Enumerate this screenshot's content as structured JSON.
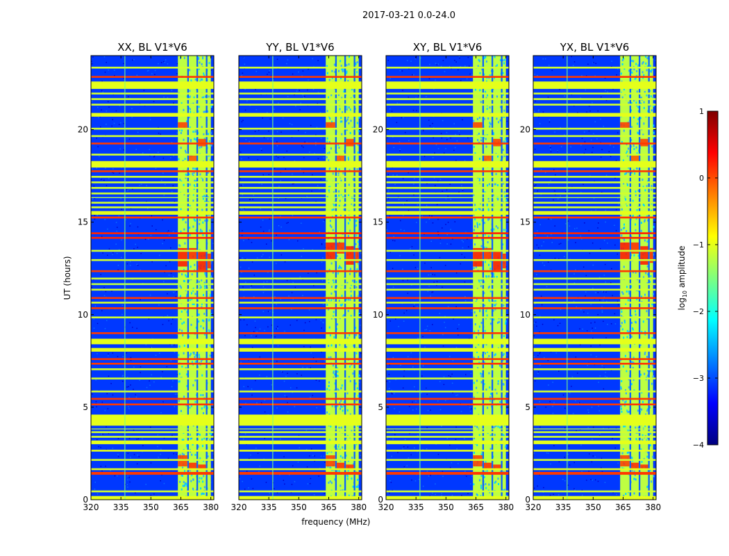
{
  "chart_data": {
    "type": "heatmap",
    "suptitle": "2017-03-21 0.0-24.0",
    "xlabel": "frequency (MHz)",
    "ylabel": "UT (hours)",
    "xlim": [
      320,
      381.5
    ],
    "ylim": [
      0,
      24
    ],
    "xticks": [
      320,
      335,
      350,
      365,
      380
    ],
    "xtick_labels": [
      "320",
      "335",
      "350",
      "365",
      "380"
    ],
    "yticks": [
      0,
      5,
      10,
      15,
      20
    ],
    "ytick_labels": [
      "0",
      "5",
      "10",
      "15",
      "20"
    ],
    "colorbar": {
      "label": "log10 amplitude",
      "label_base": "log",
      "label_sub": "10",
      "label_rest": " amplitude",
      "range": [
        -4,
        1
      ],
      "ticks": [
        1,
        0,
        -1,
        -2,
        -3,
        -4
      ],
      "tick_labels": [
        "1",
        "0",
        "−1",
        "−2",
        "−3",
        "−4"
      ],
      "colormap": "jet"
    },
    "panels": [
      {
        "title": "XX, BL V1*V6",
        "show_yticks": true,
        "show_xlabel": false
      },
      {
        "title": "YY, BL V1*V6",
        "show_yticks": false,
        "show_xlabel": true
      },
      {
        "title": "XY, BL V1*V6",
        "show_yticks": true,
        "show_xlabel": false
      },
      {
        "title": "YX, BL V1*V6",
        "show_yticks": true,
        "show_xlabel": false
      }
    ],
    "background_level": -3.1,
    "rfi_band_MHz": [
      363.5,
      380.0
    ],
    "rfi_band_level": -1.2,
    "rfi_subband_edges_MHz": [
      363.5,
      368.2,
      369.0,
      372.8,
      373.6,
      377.5,
      378.3,
      380.0
    ],
    "horizontal_flag_bands": [
      {
        "t0": 0.0,
        "t1": 0.2,
        "level": -1.0
      },
      {
        "t0": 0.4,
        "t1": 0.5,
        "level": -1.1
      },
      {
        "t0": 1.35,
        "t1": 1.5,
        "level": 0.1
      },
      {
        "t0": 1.6,
        "t1": 1.7,
        "level": -1.0
      },
      {
        "t0": 2.1,
        "t1": 2.2,
        "level": -1.1
      },
      {
        "t0": 2.6,
        "t1": 2.7,
        "level": -1.0
      },
      {
        "t0": 3.0,
        "t1": 3.2,
        "level": -1.0
      },
      {
        "t0": 3.35,
        "t1": 3.45,
        "level": -1.1
      },
      {
        "t0": 3.6,
        "t1": 3.7,
        "level": -1.1
      },
      {
        "t0": 3.8,
        "t1": 3.85,
        "level": -1.2
      },
      {
        "t0": 4.0,
        "t1": 4.6,
        "level": -1.0
      },
      {
        "t0": 5.1,
        "t1": 5.2,
        "level": 0.1
      },
      {
        "t0": 5.4,
        "t1": 5.5,
        "level": 0.1
      },
      {
        "t0": 5.8,
        "t1": 5.9,
        "level": -1.1
      },
      {
        "t0": 6.5,
        "t1": 6.6,
        "level": -1.1
      },
      {
        "t0": 7.0,
        "t1": 7.1,
        "level": -1.1
      },
      {
        "t0": 7.3,
        "t1": 7.4,
        "level": 0.1
      },
      {
        "t0": 7.55,
        "t1": 7.65,
        "level": 0.1
      },
      {
        "t0": 8.0,
        "t1": 8.2,
        "level": -1.0
      },
      {
        "t0": 8.4,
        "t1": 8.7,
        "level": -1.0
      },
      {
        "t0": 8.95,
        "t1": 9.05,
        "level": 0.1
      },
      {
        "t0": 9.8,
        "t1": 9.9,
        "level": -1.1
      },
      {
        "t0": 10.3,
        "t1": 10.4,
        "level": 0.1
      },
      {
        "t0": 10.6,
        "t1": 10.7,
        "level": -1.1
      },
      {
        "t0": 10.85,
        "t1": 10.95,
        "level": 0.1
      },
      {
        "t0": 11.3,
        "t1": 11.4,
        "level": -1.1
      },
      {
        "t0": 11.6,
        "t1": 11.7,
        "level": -1.2
      },
      {
        "t0": 11.9,
        "t1": 12.0,
        "level": -1.1
      },
      {
        "t0": 12.3,
        "t1": 12.4,
        "level": 0.1
      },
      {
        "t0": 12.9,
        "t1": 13.0,
        "level": -1.1
      },
      {
        "t0": 13.4,
        "t1": 13.5,
        "level": -1.1
      },
      {
        "t0": 14.1,
        "t1": 14.2,
        "level": 0.2
      },
      {
        "t0": 14.35,
        "t1": 14.45,
        "level": 0.2
      },
      {
        "t0": 15.2,
        "t1": 15.3,
        "level": 0.1
      },
      {
        "t0": 15.4,
        "t1": 15.6,
        "level": -1.0
      },
      {
        "t0": 15.75,
        "t1": 15.85,
        "level": -1.1
      },
      {
        "t0": 16.0,
        "t1": 16.1,
        "level": -1.1
      },
      {
        "t0": 16.3,
        "t1": 16.35,
        "level": -1.2
      },
      {
        "t0": 16.5,
        "t1": 16.6,
        "level": -1.1
      },
      {
        "t0": 16.8,
        "t1": 16.9,
        "level": -1.1
      },
      {
        "t0": 17.1,
        "t1": 17.2,
        "level": -1.1
      },
      {
        "t0": 17.4,
        "t1": 17.5,
        "level": -1.1
      },
      {
        "t0": 17.7,
        "t1": 17.8,
        "level": 0.1
      },
      {
        "t0": 17.95,
        "t1": 18.3,
        "level": -1.0
      },
      {
        "t0": 18.6,
        "t1": 18.7,
        "level": -1.1
      },
      {
        "t0": 19.2,
        "t1": 19.3,
        "level": 0.1
      },
      {
        "t0": 19.6,
        "t1": 19.7,
        "level": -1.1
      },
      {
        "t0": 20.0,
        "t1": 20.1,
        "level": -1.1
      },
      {
        "t0": 20.7,
        "t1": 20.9,
        "level": -1.0
      },
      {
        "t0": 21.3,
        "t1": 21.4,
        "level": -1.1
      },
      {
        "t0": 21.6,
        "t1": 21.7,
        "level": -1.1
      },
      {
        "t0": 21.9,
        "t1": 22.0,
        "level": -1.1
      },
      {
        "t0": 22.2,
        "t1": 22.6,
        "level": -1.0
      },
      {
        "t0": 22.8,
        "t1": 22.9,
        "level": 0.1
      },
      {
        "t0": 23.3,
        "t1": 23.4,
        "level": -1.1
      }
    ],
    "vertical_channel_lines_MHz": [
      {
        "f": 336.8,
        "level": -1.4
      },
      {
        "f": 337.1,
        "level": -1.6
      }
    ],
    "hot_spots": [
      {
        "f0": 363.5,
        "f1": 368.2,
        "t0": 12.6,
        "t1": 13.6,
        "level": 0.3
      },
      {
        "f0": 369.0,
        "f1": 372.8,
        "t0": 13.0,
        "t1": 13.6,
        "level": 0.2
      },
      {
        "f0": 373.6,
        "f1": 377.5,
        "t0": 12.4,
        "t1": 13.4,
        "level": 0.3
      },
      {
        "f0": 378.3,
        "f1": 380.0,
        "t0": 12.5,
        "t1": 13.3,
        "level": 0.2
      },
      {
        "f0": 363.5,
        "f1": 368.2,
        "t0": 1.8,
        "t1": 2.4,
        "level": 0.1
      },
      {
        "f0": 369.0,
        "f1": 372.8,
        "t0": 1.6,
        "t1": 2.0,
        "level": 0.2
      },
      {
        "f0": 373.6,
        "f1": 377.5,
        "t0": 1.6,
        "t1": 1.9,
        "level": 0.2
      },
      {
        "f0": 363.5,
        "f1": 368.2,
        "t0": 20.0,
        "t1": 20.4,
        "level": 0.1
      },
      {
        "f0": 373.6,
        "f1": 377.5,
        "t0": 19.1,
        "t1": 19.5,
        "level": 0.1
      },
      {
        "f0": 369.0,
        "f1": 372.8,
        "t0": 18.3,
        "t1": 18.6,
        "level": 0.0
      }
    ]
  }
}
